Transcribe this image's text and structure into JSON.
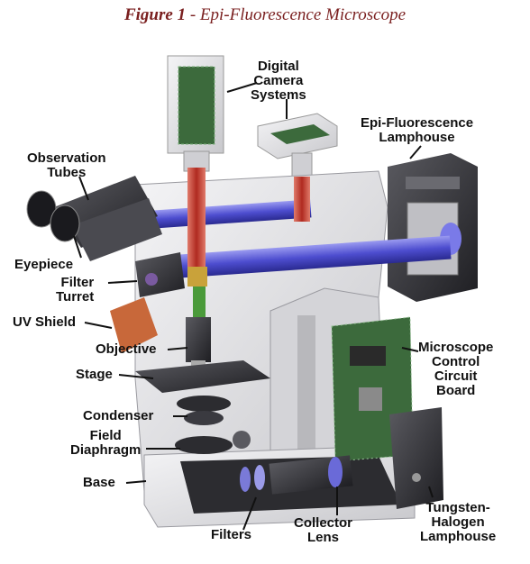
{
  "title": {
    "figure": "Figure 1",
    "rest": " - Epi-Fluorescence Microscope"
  },
  "labels": {
    "digital_camera": "Digital\nCamera\nSystems",
    "epi_lamphouse": "Epi-Fluorescence\nLamphouse",
    "observation_tubes": "Observation\nTubes",
    "eyepiece": "Eyepiece",
    "filter_turret": "Filter\nTurret",
    "uv_shield": "UV Shield",
    "objective": "Objective",
    "stage": "Stage",
    "condenser": "Condenser",
    "field_diaphragm": "Field\nDiaphragm",
    "base": "Base",
    "filters": "Filters",
    "collector_lens": "Collector\nLens",
    "control_board": "Microscope\nControl\nCircuit\nBoard",
    "tungsten_lamphouse": "Tungsten-\nHalogen\nLamphouse"
  },
  "colors": {
    "title": "#7a1f1f",
    "body": "#e4e4e6",
    "body_dark": "#3c3c40",
    "light_red": "#c0392b",
    "light_blue": "#5a5ad8",
    "light_green": "#4a9a3a",
    "uv_shield": "#c8683a",
    "board": "#3c6a3c"
  }
}
